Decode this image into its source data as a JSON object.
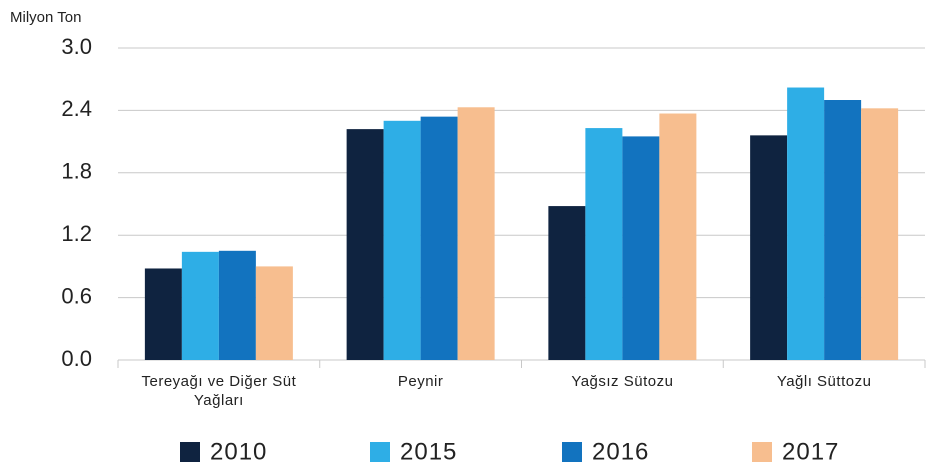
{
  "chart_data": {
    "type": "bar",
    "y_label": "Milyon Ton",
    "categories": [
      "Tereyağı ve Diğer Süt Yağları",
      "Peynir",
      "Yağsız Sütozu",
      "Yağlı Süttozu"
    ],
    "series": [
      {
        "name": "2010",
        "color": "#0f2340",
        "values": [
          0.88,
          2.22,
          1.48,
          2.16
        ]
      },
      {
        "name": "2015",
        "color": "#2eaee6",
        "values": [
          1.04,
          2.3,
          2.23,
          2.62
        ]
      },
      {
        "name": "2016",
        "color": "#1273bf",
        "values": [
          1.05,
          2.34,
          2.15,
          2.5
        ]
      },
      {
        "name": "2017",
        "color": "#f7be8f",
        "values": [
          0.9,
          2.43,
          2.37,
          2.42
        ]
      }
    ],
    "ylim": [
      0,
      3
    ],
    "yticks": [
      {
        "value": 0,
        "label": "0.0"
      },
      {
        "value": 0.6,
        "label": "0.6"
      },
      {
        "value": 1.2,
        "label": "1.2"
      },
      {
        "value": 1.8,
        "label": "1.8"
      },
      {
        "value": 2.4,
        "label": "2.4"
      },
      {
        "value": 3,
        "label": "3.0"
      }
    ],
    "grid": true,
    "legend": "bottom"
  }
}
